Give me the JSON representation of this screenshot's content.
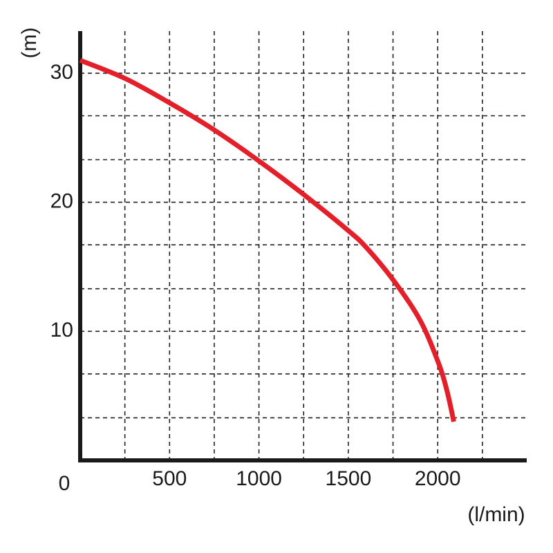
{
  "chart_data": {
    "type": "line",
    "xlabel": "(l/min)",
    "ylabel": "(m)",
    "origin_label": "0",
    "xlim": [
      0,
      2500
    ],
    "ylim": [
      0,
      33
    ],
    "x_ticks": [
      500,
      1000,
      1500,
      2000
    ],
    "y_ticks": [
      10,
      20,
      30
    ],
    "x_grid": [
      250,
      500,
      750,
      1000,
      1250,
      1500,
      1750,
      2000,
      2250
    ],
    "y_grid": [
      3.3,
      6.7,
      10,
      13.3,
      16.7,
      20,
      23.3,
      26.7,
      30
    ],
    "grid": true,
    "series": [
      {
        "color": "#e3202a",
        "x": [
          0,
          250,
          500,
          750,
          1000,
          1250,
          1500,
          1600,
          1750,
          1900,
          2000,
          2050,
          2090
        ],
        "y": [
          31,
          29.6,
          27.7,
          25.6,
          23.2,
          20.6,
          17.8,
          16.5,
          14,
          10.9,
          7.7,
          5.5,
          3
        ]
      }
    ]
  }
}
